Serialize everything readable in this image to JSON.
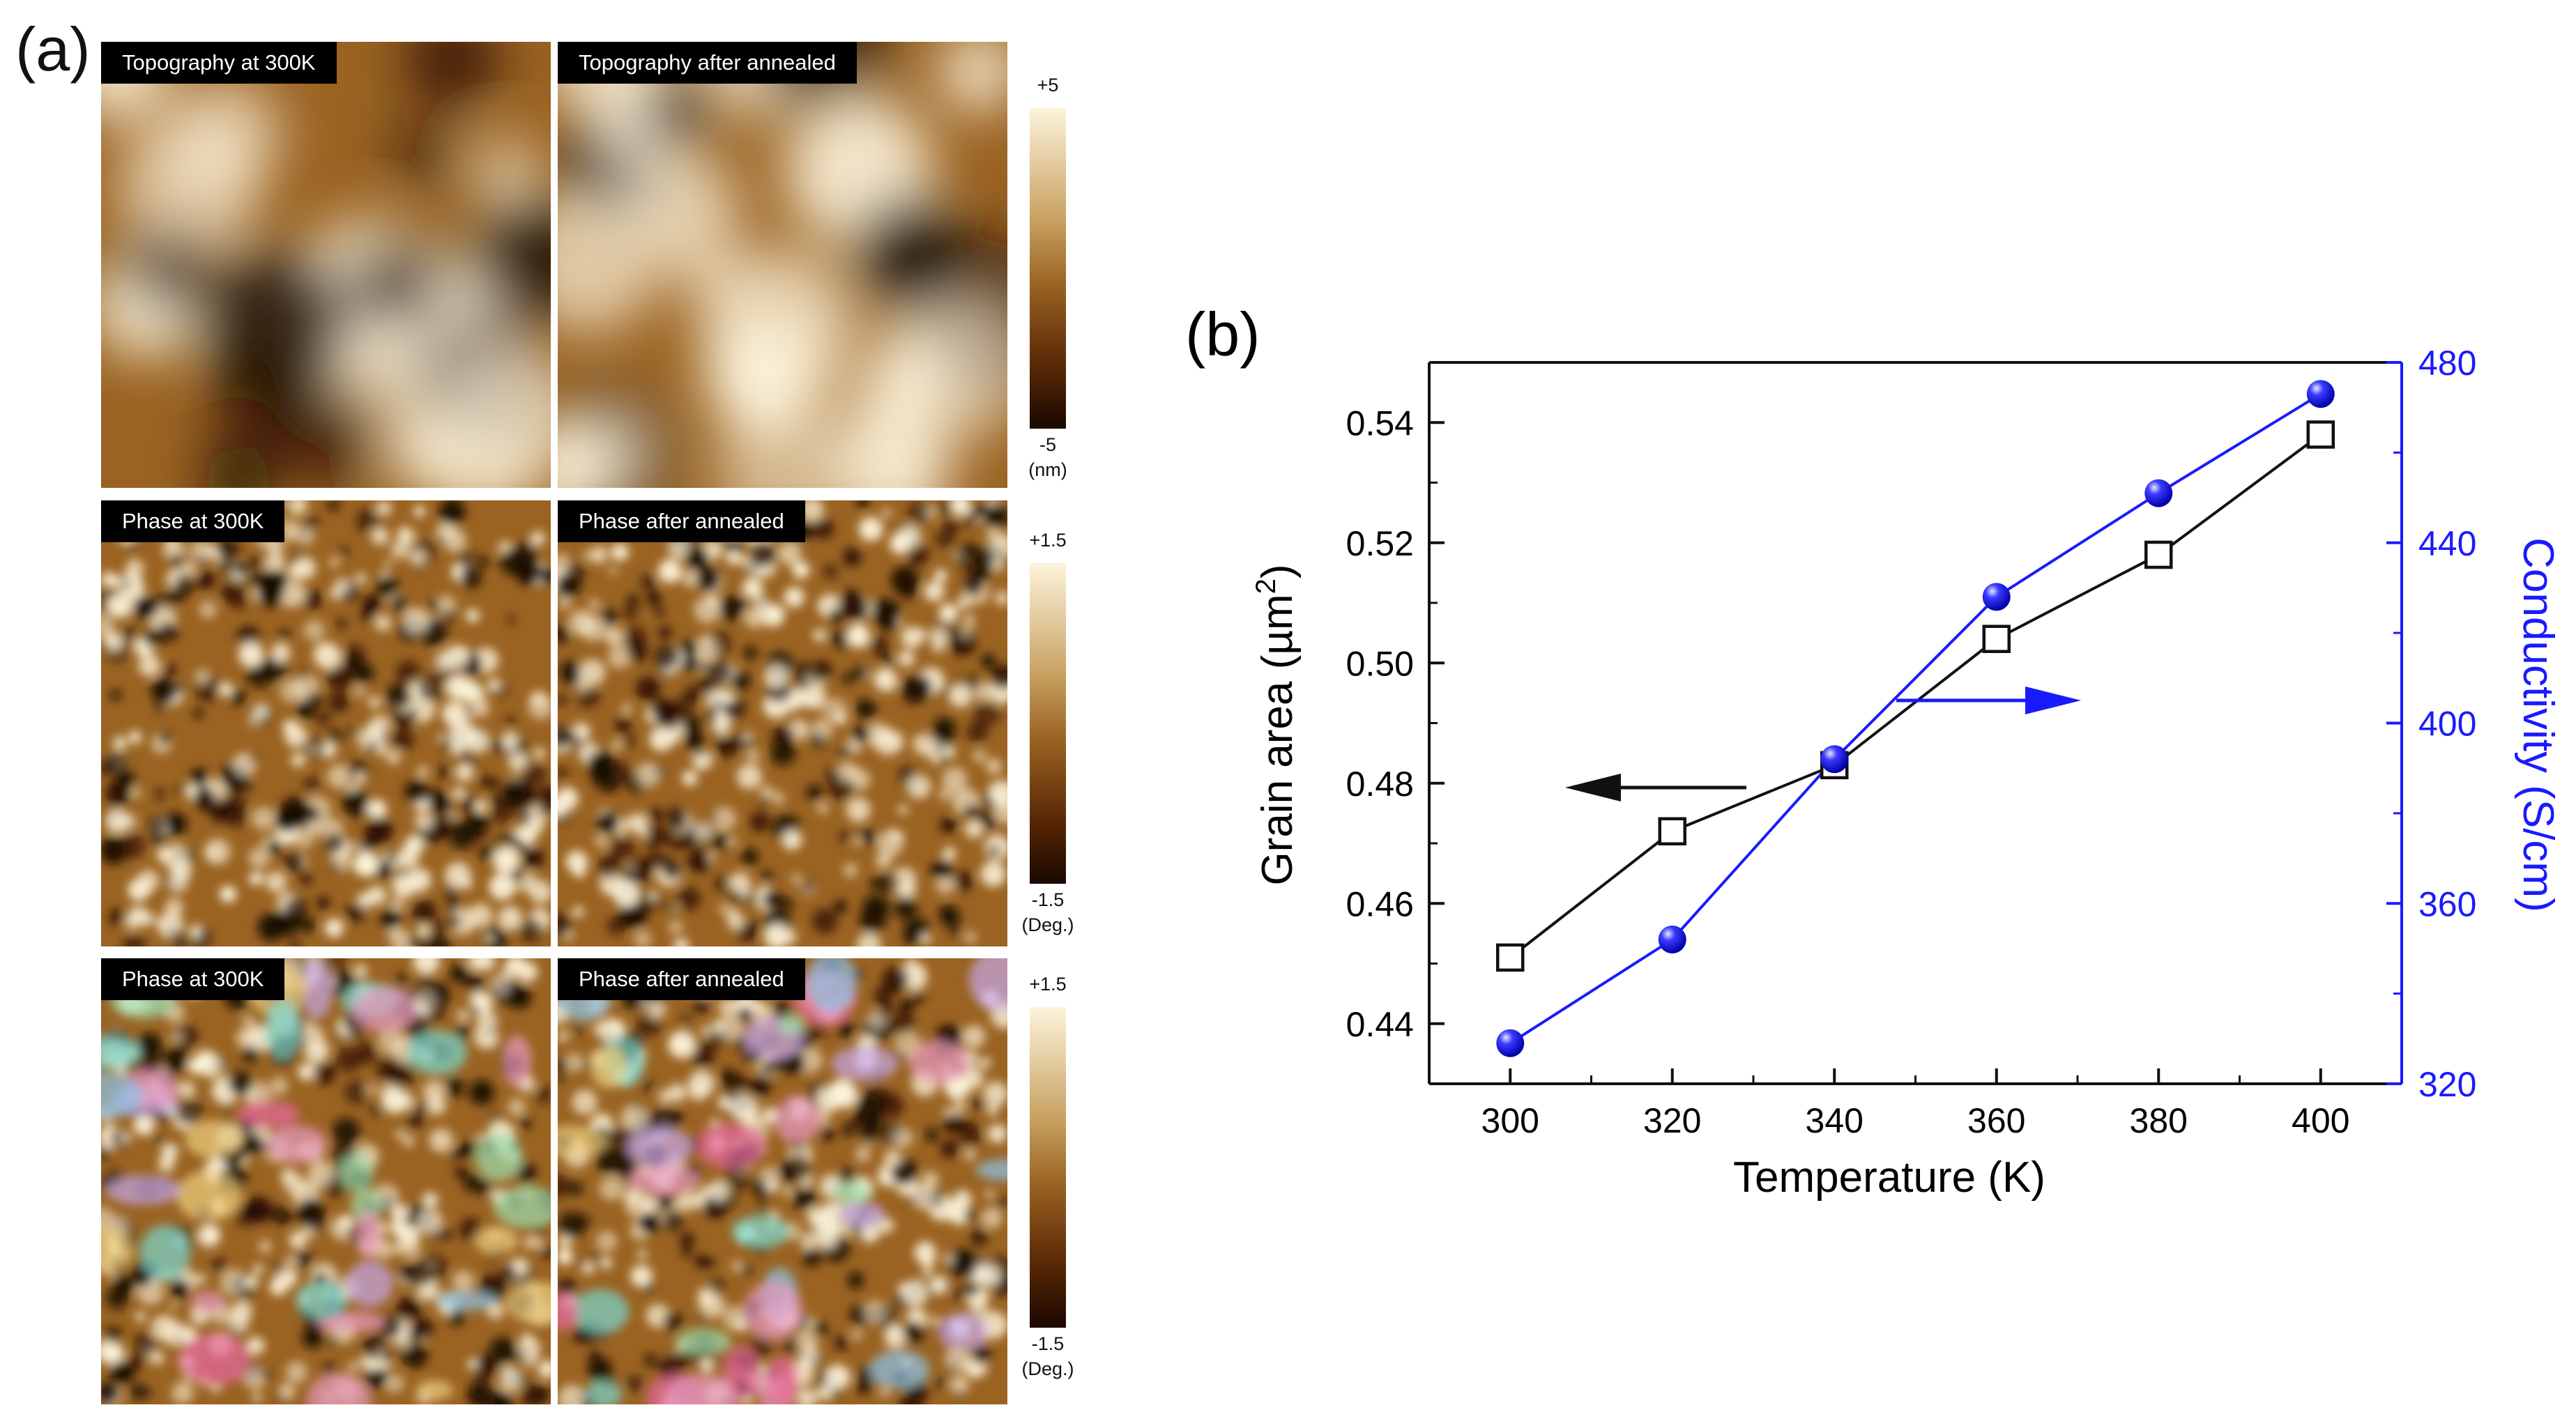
{
  "panel_a": {
    "letter": "(a)",
    "tiles": [
      {
        "label": "Topography at 300K",
        "kind": "topo",
        "seed": 11
      },
      {
        "label": "Topography after annealed",
        "kind": "topo",
        "seed": 29
      },
      {
        "label": "Phase at 300K",
        "kind": "phase",
        "seed": 41
      },
      {
        "label": "Phase after annealed",
        "kind": "phase",
        "seed": 53
      },
      {
        "label": "Phase at 300K",
        "kind": "grain",
        "seed": 67
      },
      {
        "label": "Phase after annealed",
        "kind": "grain",
        "seed": 79
      }
    ],
    "colorbars": [
      {
        "top": "+5",
        "bottom": "-5",
        "unit": "(nm)"
      },
      {
        "top": "+1.5",
        "bottom": "-1.5",
        "unit": "(Deg.)"
      },
      {
        "top": "+1.5",
        "bottom": "-1.5",
        "unit": "(Deg.)"
      }
    ],
    "colors": {
      "dark": "#1a0800",
      "mid": "#9a6322",
      "light": "#fdf4dc"
    }
  },
  "chart_data": {
    "letter": "(b)",
    "type": "line",
    "x": [
      300,
      320,
      340,
      360,
      380,
      400
    ],
    "xlabel": "Temperature (K)",
    "xlim": [
      290,
      410
    ],
    "xticks": [
      300,
      320,
      340,
      360,
      380,
      400
    ],
    "ylabel_left": "Grain area (µm²)",
    "ylabel_left_base": "Grain area (",
    "ylabel_left_unit": "µm",
    "ylabel_left_sup": "2",
    "ylabel_left_end": ")",
    "ylim_left": [
      0.43,
      0.55
    ],
    "yticks_left": [
      "0.44",
      "0.46",
      "0.48",
      "0.50",
      "0.52",
      "0.54"
    ],
    "ylabel_right": "Conductivity (S/cm)",
    "ylim_right": [
      320,
      480
    ],
    "yticks_right": [
      "320",
      "360",
      "400",
      "440",
      "480"
    ],
    "series": [
      {
        "axis": "left",
        "marker": "open-square",
        "color": "#111111",
        "values": [
          0.451,
          0.472,
          0.483,
          0.504,
          0.518,
          0.538
        ]
      },
      {
        "axis": "right",
        "marker": "filled-sphere",
        "color": "#1a1aff",
        "values": [
          329,
          352,
          392,
          428,
          451,
          473
        ]
      }
    ],
    "arrows": [
      {
        "direction": "left",
        "color": "#111111",
        "points_to": "left-axis"
      },
      {
        "direction": "right",
        "color": "#1a1aff",
        "points_to": "right-axis"
      }
    ]
  }
}
